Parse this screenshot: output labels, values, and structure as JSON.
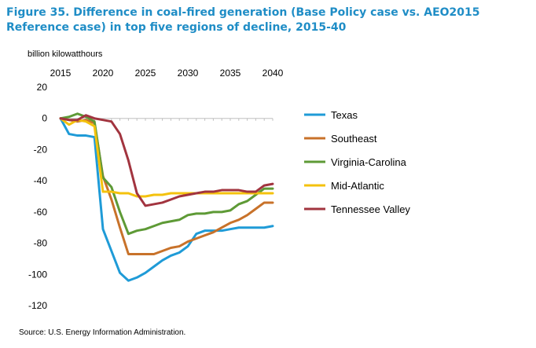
{
  "title": "Figure 35. Difference in coal-fired generation (Base Policy case vs. AEO2015 Reference case) in top five regions of decline, 2015-40",
  "source": "Source: U.S. Energy Information Administration.",
  "chart_data": {
    "type": "line",
    "ylabel": "billion kilowatthours",
    "xlabel": "",
    "x": [
      2015,
      2016,
      2017,
      2018,
      2019,
      2020,
      2021,
      2022,
      2023,
      2024,
      2025,
      2026,
      2027,
      2028,
      2029,
      2030,
      2031,
      2032,
      2033,
      2034,
      2035,
      2036,
      2037,
      2038,
      2039,
      2040
    ],
    "xticks": [
      2015,
      2020,
      2025,
      2030,
      2035,
      2040
    ],
    "yticks": [
      20,
      0,
      -20,
      -40,
      -60,
      -80,
      -100,
      -120
    ],
    "xlim": [
      2015,
      2040
    ],
    "ylim": [
      -120,
      20
    ],
    "legend_position": "right",
    "series": [
      {
        "name": "Texas",
        "color": "#1f9bd7",
        "values": [
          0,
          -10,
          -11,
          -11,
          -12,
          -71,
          -85,
          -99,
          -104,
          -102,
          -99,
          -95,
          -91,
          -88,
          -86,
          -82,
          -74,
          -72,
          -72,
          -72,
          -71,
          -70,
          -70,
          -70,
          -70,
          -69
        ]
      },
      {
        "name": "Southeast",
        "color": "#c8722a",
        "values": [
          0,
          -1,
          -2,
          -1,
          -3,
          -37,
          -52,
          -70,
          -87,
          -87,
          -87,
          -87,
          -85,
          -83,
          -82,
          -79,
          -77,
          -75,
          -73,
          -70,
          -67,
          -65,
          -62,
          -58,
          -54,
          -54
        ]
      },
      {
        "name": "Virginia-Carolina",
        "color": "#5e9a36",
        "values": [
          0,
          1,
          3,
          1,
          -2,
          -38,
          -44,
          -60,
          -74,
          -72,
          -71,
          -69,
          -67,
          -66,
          -65,
          -62,
          -61,
          -61,
          -60,
          -60,
          -59,
          -55,
          -53,
          -49,
          -45,
          -45
        ]
      },
      {
        "name": "Mid-Atlantic",
        "color": "#f4c20d",
        "values": [
          0,
          -4,
          -1,
          -2,
          -5,
          -47,
          -47,
          -48,
          -48,
          -50,
          -50,
          -49,
          -49,
          -48,
          -48,
          -48,
          -48,
          -48,
          -48,
          -48,
          -48,
          -48,
          -48,
          -48,
          -48,
          -48
        ]
      },
      {
        "name": "Tennessee Valley",
        "color": "#a2343f",
        "values": [
          0,
          -1,
          -1,
          2,
          0,
          -1,
          -2,
          -10,
          -27,
          -48,
          -56,
          -55,
          -54,
          -52,
          -50,
          -49,
          -48,
          -47,
          -47,
          -46,
          -46,
          -46,
          -47,
          -47,
          -43,
          -42
        ]
      }
    ]
  }
}
